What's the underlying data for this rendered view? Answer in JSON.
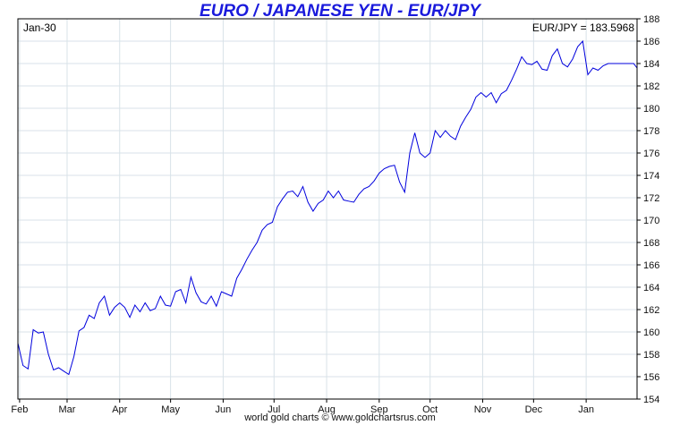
{
  "colors": {
    "line": "#0000dd",
    "title": "#1a1adc",
    "grid": "#d8e2e8",
    "frame": "#000000"
  },
  "footer": "world gold charts © www.goldchartsrus.com",
  "chart_data": {
    "type": "line",
    "title": "EURO / JAPANESE YEN - EUR/JPY",
    "date_label": "Jan-30",
    "value_label": "EUR/JPY = 183.5968",
    "xlabel": "",
    "ylabel": "",
    "ylim": [
      154,
      188
    ],
    "yticks": [
      154,
      156,
      158,
      160,
      162,
      164,
      166,
      168,
      170,
      172,
      174,
      176,
      178,
      180,
      182,
      184,
      186,
      188
    ],
    "xlim": [
      "2023-01-31",
      "2024-01-31"
    ],
    "xticks": [
      {
        "label": "Feb",
        "date": "2023-02-01"
      },
      {
        "label": "Mar",
        "date": "2023-03-01"
      },
      {
        "label": "Apr",
        "date": "2023-04-01"
      },
      {
        "label": "May",
        "date": "2023-05-01"
      },
      {
        "label": "Jun",
        "date": "2023-06-01"
      },
      {
        "label": "Jul",
        "date": "2023-07-01"
      },
      {
        "label": "Aug",
        "date": "2023-08-01"
      },
      {
        "label": "Sep",
        "date": "2023-09-01"
      },
      {
        "label": "Oct",
        "date": "2023-10-01"
      },
      {
        "label": "Nov",
        "date": "2023-11-01"
      },
      {
        "label": "Dec",
        "date": "2023-12-01"
      },
      {
        "label": "Jan",
        "date": "2024-01-01"
      }
    ],
    "grid": true,
    "series": [
      {
        "x": [
          "2023-01-31",
          "2023-02-03",
          "2023-02-06",
          "2023-02-09",
          "2023-02-12",
          "2023-02-15",
          "2023-02-18",
          "2023-02-21",
          "2023-02-24",
          "2023-02-27",
          "2023-03-02",
          "2023-03-05",
          "2023-03-08",
          "2023-03-11",
          "2023-03-14",
          "2023-03-17",
          "2023-03-20",
          "2023-03-23",
          "2023-03-26",
          "2023-03-29",
          "2023-04-01",
          "2023-04-04",
          "2023-04-07",
          "2023-04-10",
          "2023-04-13",
          "2023-04-16",
          "2023-04-19",
          "2023-04-22",
          "2023-04-25",
          "2023-04-28",
          "2023-05-01",
          "2023-05-04",
          "2023-05-07",
          "2023-05-10",
          "2023-05-13",
          "2023-05-16",
          "2023-05-19",
          "2023-05-22",
          "2023-05-25",
          "2023-05-28",
          "2023-05-31",
          "2023-06-03",
          "2023-06-06",
          "2023-06-09",
          "2023-06-12",
          "2023-06-15",
          "2023-06-18",
          "2023-06-21",
          "2023-06-24",
          "2023-06-27",
          "2023-06-30",
          "2023-07-03",
          "2023-07-06",
          "2023-07-09",
          "2023-07-12",
          "2023-07-15",
          "2023-07-18",
          "2023-07-21",
          "2023-07-24",
          "2023-07-27",
          "2023-07-30",
          "2023-08-02",
          "2023-08-05",
          "2023-08-08",
          "2023-08-11",
          "2023-08-14",
          "2023-08-17",
          "2023-08-20",
          "2023-08-23",
          "2023-08-26",
          "2023-08-29",
          "2023-09-01",
          "2023-09-04",
          "2023-09-07",
          "2023-09-10",
          "2023-09-13",
          "2023-09-16",
          "2023-09-19",
          "2023-09-22",
          "2023-09-25",
          "2023-09-28",
          "2023-10-01",
          "2023-10-04",
          "2023-10-07",
          "2023-10-10",
          "2023-10-13",
          "2023-10-16",
          "2023-10-19",
          "2023-10-22",
          "2023-10-25",
          "2023-10-28",
          "2023-10-31",
          "2023-11-03",
          "2023-11-06",
          "2023-11-09",
          "2023-11-12",
          "2023-11-15",
          "2023-11-18",
          "2023-11-21",
          "2023-11-24",
          "2023-11-27",
          "2023-11-30",
          "2023-12-03",
          "2023-12-06",
          "2023-12-09",
          "2023-12-12",
          "2023-12-15",
          "2023-12-18",
          "2023-12-21",
          "2023-12-24",
          "2023-12-27",
          "2023-12-30",
          "2024-01-02",
          "2024-01-05",
          "2024-01-08",
          "2024-01-11",
          "2024-01-14",
          "2024-01-17",
          "2024-01-20",
          "2024-01-23",
          "2024-01-26",
          "2024-01-29",
          "2024-01-31"
        ],
        "values": [
          159.0,
          157.0,
          156.7,
          160.2,
          159.9,
          160.0,
          158.0,
          156.6,
          156.8,
          156.5,
          156.2,
          157.8,
          160.1,
          160.4,
          161.5,
          161.2,
          162.6,
          163.2,
          161.5,
          162.2,
          162.6,
          162.2,
          161.3,
          162.4,
          161.8,
          162.6,
          161.9,
          162.1,
          163.2,
          162.4,
          162.3,
          163.6,
          163.8,
          162.6,
          164.9,
          163.5,
          162.7,
          162.5,
          163.2,
          162.3,
          163.6,
          163.4,
          163.2,
          164.8,
          165.6,
          166.5,
          167.3,
          168.0,
          169.1,
          169.6,
          169.8,
          171.2,
          171.9,
          172.5,
          172.6,
          172.1,
          173.0,
          171.6,
          170.8,
          171.5,
          171.8,
          172.6,
          172.0,
          172.6,
          171.8,
          171.7,
          171.6,
          172.3,
          172.8,
          173.0,
          173.5,
          174.2,
          174.6,
          174.8,
          174.9,
          173.4,
          172.5,
          176.0,
          177.8,
          176.0,
          175.6,
          176.0,
          178.0,
          177.4,
          178.0,
          177.5,
          177.2,
          178.4,
          179.2,
          179.9,
          181.0,
          181.4,
          181.0,
          181.4,
          180.5,
          181.3,
          181.6,
          182.5,
          183.5,
          184.6,
          184.0,
          183.9,
          184.2,
          183.5,
          183.4,
          184.7,
          185.3,
          184.0,
          183.7,
          184.4,
          185.5,
          186.0,
          183.0,
          183.6,
          183.4,
          183.8,
          184.0,
          184.0,
          184.0,
          184.0,
          184.0,
          184.0,
          183.6
        ]
      }
    ]
  }
}
